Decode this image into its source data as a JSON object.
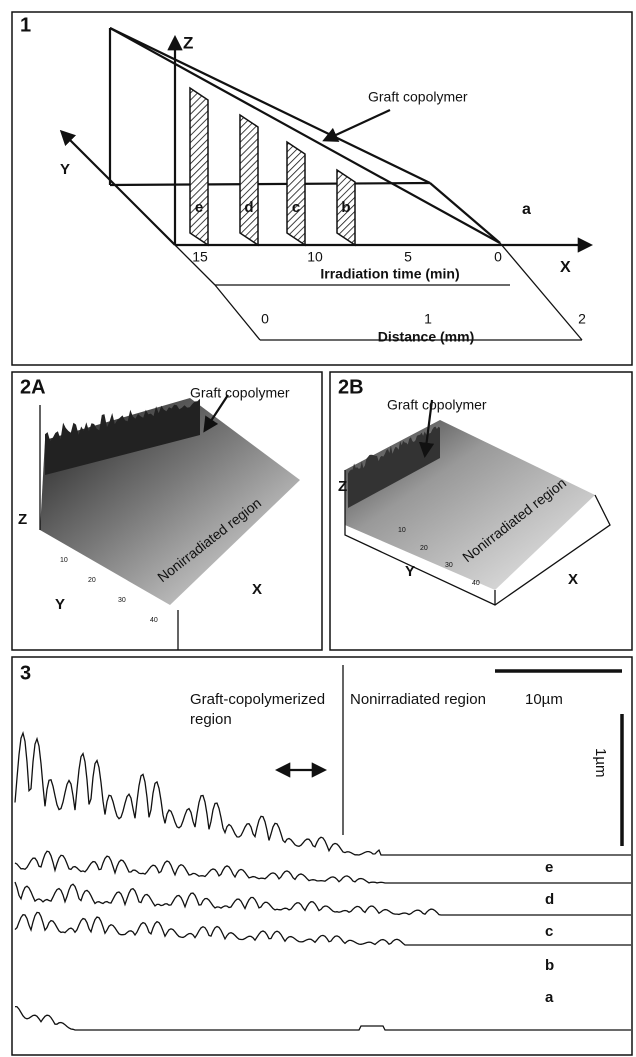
{
  "panel1": {
    "label": "1",
    "z_axis": "Z",
    "x_axis": "X",
    "y_axis": "Y",
    "annotation": "Graft copolymer",
    "slices": [
      "e",
      "d",
      "c",
      "b"
    ],
    "plane_label": "a",
    "time_ticks": [
      "15",
      "10",
      "5",
      "0"
    ],
    "time_axis": "Irradiation time (min)",
    "distance_ticks": [
      "0",
      "1",
      "2"
    ],
    "distance_axis": "Distance (mm)"
  },
  "panel2A": {
    "label": "2A",
    "annotation": "Graft copolymer",
    "region": "Nonirradiated region",
    "z_axis": "Z",
    "y_axis": "Y",
    "x_axis": "X",
    "y_ticks": [
      "10",
      "20",
      "30",
      "40"
    ]
  },
  "panel2B": {
    "label": "2B",
    "annotation": "Graft copolymer",
    "region": "Nonirradiated region",
    "z_axis": "Z",
    "y_axis": "Y",
    "x_axis": "X",
    "y_ticks": [
      "10",
      "20",
      "30",
      "40"
    ]
  },
  "panel3": {
    "label": "3",
    "left_region": [
      "Graft-copolymerized",
      "region"
    ],
    "right_region": "Nonirradiated region",
    "scale_x": "10µm",
    "scale_y": "1µm",
    "traces": [
      "e",
      "d",
      "c",
      "b",
      "a"
    ]
  }
}
